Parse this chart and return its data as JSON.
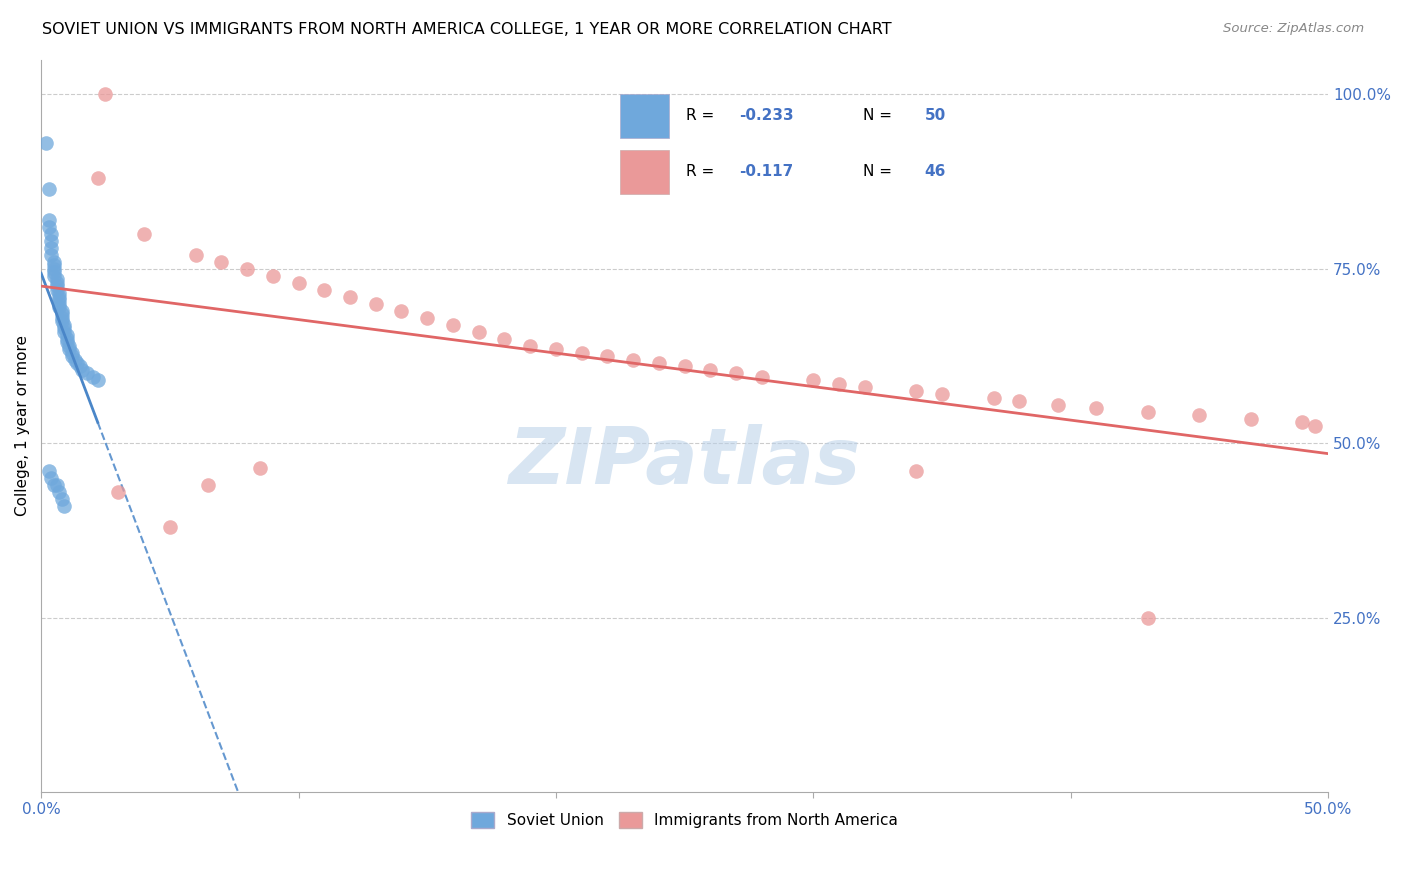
{
  "title": "SOVIET UNION VS IMMIGRANTS FROM NORTH AMERICA COLLEGE, 1 YEAR OR MORE CORRELATION CHART",
  "source": "Source: ZipAtlas.com",
  "ylabel": "College, 1 year or more",
  "x_min": 0.0,
  "x_max": 0.5,
  "y_min": 0.0,
  "y_max": 1.05,
  "legend_R1": "-0.233",
  "legend_N1": "50",
  "legend_R2": "-0.117",
  "legend_N2": "46",
  "blue_color": "#6fa8dc",
  "pink_color": "#ea9999",
  "blue_line_color": "#4a86c8",
  "pink_line_color": "#e06666",
  "watermark_text": "ZIPatlas",
  "soviet_x": [
    0.002,
    0.003,
    0.003,
    0.004,
    0.004,
    0.004,
    0.004,
    0.005,
    0.005,
    0.005,
    0.005,
    0.005,
    0.006,
    0.006,
    0.006,
    0.006,
    0.007,
    0.007,
    0.007,
    0.007,
    0.007,
    0.008,
    0.008,
    0.008,
    0.008,
    0.009,
    0.009,
    0.009,
    0.01,
    0.01,
    0.01,
    0.011,
    0.011,
    0.012,
    0.012,
    0.013,
    0.014,
    0.015,
    0.016,
    0.018,
    0.02,
    0.022,
    0.003,
    0.004,
    0.005,
    0.006,
    0.007,
    0.008,
    0.009,
    0.003
  ],
  "soviet_y": [
    0.93,
    0.82,
    0.81,
    0.8,
    0.79,
    0.78,
    0.77,
    0.76,
    0.755,
    0.75,
    0.745,
    0.74,
    0.735,
    0.73,
    0.725,
    0.72,
    0.715,
    0.71,
    0.705,
    0.7,
    0.695,
    0.69,
    0.685,
    0.68,
    0.675,
    0.67,
    0.665,
    0.66,
    0.655,
    0.65,
    0.645,
    0.64,
    0.635,
    0.63,
    0.625,
    0.62,
    0.615,
    0.61,
    0.605,
    0.6,
    0.595,
    0.59,
    0.46,
    0.45,
    0.44,
    0.44,
    0.43,
    0.42,
    0.41,
    0.865
  ],
  "na_x": [
    0.025,
    0.022,
    0.04,
    0.06,
    0.07,
    0.08,
    0.09,
    0.1,
    0.11,
    0.12,
    0.13,
    0.14,
    0.15,
    0.16,
    0.17,
    0.18,
    0.19,
    0.2,
    0.21,
    0.22,
    0.23,
    0.24,
    0.25,
    0.26,
    0.27,
    0.28,
    0.3,
    0.31,
    0.32,
    0.34,
    0.35,
    0.37,
    0.38,
    0.395,
    0.41,
    0.43,
    0.45,
    0.47,
    0.49,
    0.495,
    0.03,
    0.05,
    0.065,
    0.085,
    0.34,
    0.43
  ],
  "na_y": [
    1.0,
    0.88,
    0.8,
    0.77,
    0.76,
    0.75,
    0.74,
    0.73,
    0.72,
    0.71,
    0.7,
    0.69,
    0.68,
    0.67,
    0.66,
    0.65,
    0.64,
    0.635,
    0.63,
    0.625,
    0.62,
    0.615,
    0.61,
    0.605,
    0.6,
    0.595,
    0.59,
    0.585,
    0.58,
    0.575,
    0.57,
    0.565,
    0.56,
    0.555,
    0.55,
    0.545,
    0.54,
    0.535,
    0.53,
    0.525,
    0.43,
    0.38,
    0.44,
    0.465,
    0.46,
    0.25
  ]
}
